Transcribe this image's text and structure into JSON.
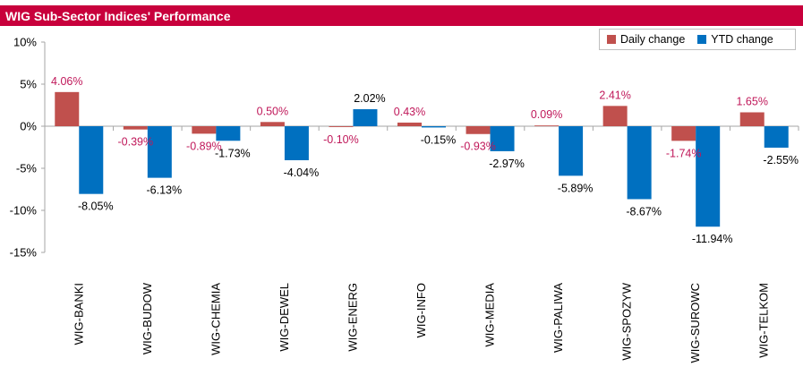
{
  "colors": {
    "title_bg": "#c8003c",
    "daily": "#c0504d",
    "ytd": "#0070c0",
    "daily_label": "#c0185a",
    "axis": "#a6a6a6"
  },
  "chart_data": {
    "type": "bar",
    "title": "WIG Sub-Sector Indices' Performance",
    "categories": [
      "WIG-BANKI",
      "WIG-BUDOW",
      "WIG-CHEMIA",
      "WIG-DEWEL",
      "WIG-ENERG",
      "WIG-INFO",
      "WIG-MEDIA",
      "WIG-PALIWA",
      "WIG-SPOZYW",
      "WIG-SUROWC",
      "WIG-TELKOM"
    ],
    "series": [
      {
        "name": "Daily change",
        "values": [
          4.06,
          -0.39,
          -0.89,
          0.5,
          -0.1,
          0.43,
          -0.93,
          0.09,
          2.41,
          -1.74,
          1.65
        ],
        "labels": [
          "4.06%",
          "-0.39%",
          "-0.89%",
          "0.50%",
          "-0.10%",
          "0.43%",
          "-0.93%",
          "0.09%",
          "2.41%",
          "-1.74%",
          "1.65%"
        ]
      },
      {
        "name": "YTD change",
        "values": [
          -8.05,
          -6.13,
          -1.73,
          -4.04,
          2.02,
          -0.15,
          -2.97,
          -5.89,
          -8.67,
          -11.94,
          -2.55
        ],
        "labels": [
          "-8.05%",
          "-6.13%",
          "-1.73%",
          "-4.04%",
          "2.02%",
          "-0.15%",
          "-2.97%",
          "-5.89%",
          "-8.67%",
          "-11.94%",
          "-2.55%"
        ]
      }
    ],
    "ylim": [
      -15,
      10
    ],
    "yticks": [
      10,
      5,
      0,
      -5,
      -10,
      -15
    ],
    "ytick_labels": [
      "10%",
      "5%",
      "0%",
      "-5%",
      "-10%",
      "-15%"
    ],
    "grid": false,
    "legend_position": "top-right"
  }
}
